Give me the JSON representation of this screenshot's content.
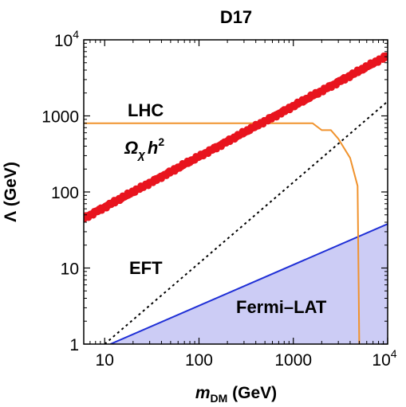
{
  "chart_data": {
    "type": "line",
    "title": "D17",
    "xscale": "log",
    "yscale": "log",
    "xlim": [
      6,
      10000
    ],
    "ylim": [
      1,
      10000
    ],
    "grid": false,
    "xlabel": {
      "main": "m",
      "sub": "DM",
      "rest": " (GeV)"
    },
    "ylabel": "Λ (GeV)",
    "xticks": [
      {
        "value": 10,
        "label": "10"
      },
      {
        "value": 100,
        "label": "100"
      },
      {
        "value": 1000,
        "label": "1000"
      },
      {
        "value": 10000,
        "base": "10",
        "exp": "4"
      }
    ],
    "yticks": [
      {
        "value": 1,
        "label": "1"
      },
      {
        "value": 10,
        "label": "10"
      },
      {
        "value": 100,
        "label": "100"
      },
      {
        "value": 1000,
        "label": "1000"
      },
      {
        "value": 10000,
        "base": "10",
        "exp": "4"
      }
    ],
    "annotations": {
      "lhc": "LHC",
      "relic": {
        "omega": "Ω",
        "chi": "χ",
        "h": "h",
        "exp": "2"
      },
      "eft": "EFT",
      "fermi": "Fermi–LAT"
    },
    "series": [
      {
        "key": "relic",
        "style": "thick-red",
        "color": "#e8141e",
        "x": [
          6,
          10000
        ],
        "y": [
          45,
          6200
        ]
      },
      {
        "key": "eft",
        "style": "dotted",
        "color": "#000000",
        "x": [
          10,
          10000
        ],
        "y": [
          1,
          1550
        ]
      },
      {
        "key": "lhc",
        "style": "solid",
        "color": "#f0922c",
        "x": [
          6,
          1600,
          2000,
          2500,
          3000,
          4000,
          4800,
          5000,
          5000
        ],
        "y": [
          800,
          800,
          650,
          650,
          500,
          280,
          120,
          1,
          1
        ]
      },
      {
        "key": "fermi",
        "style": "filled-area",
        "color": "#1f2fd6",
        "fill": "#ccccf5",
        "x": [
          11.5,
          10000
        ],
        "y": [
          1,
          38
        ]
      }
    ]
  }
}
